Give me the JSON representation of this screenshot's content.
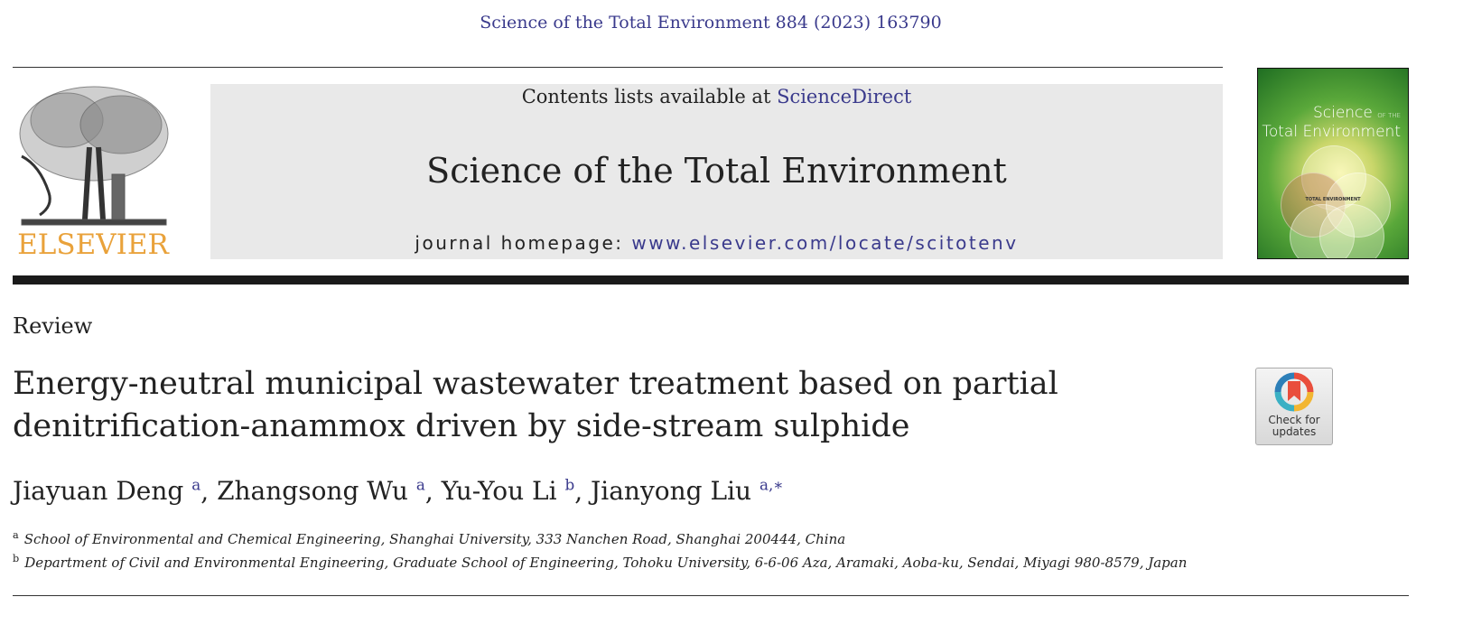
{
  "header": {
    "citation": "Science of the Total Environment 884 (2023) 163790"
  },
  "publisher_logo": {
    "text": "ELSEVIER",
    "color": "#e9a23b"
  },
  "masthead": {
    "contents_prefix": "Contents lists available at ",
    "contents_link": "ScienceDirect",
    "journal_title": "Science of the Total Environment",
    "homepage_prefix": "journal homepage: ",
    "homepage_link": "www.elsevier.com/locate/scitotenv"
  },
  "cover": {
    "title_line1": "Science",
    "title_small": "OF THE",
    "title_line2": "Total Environment",
    "center": "TOTAL ENVIRONMENT"
  },
  "article": {
    "type": "Review",
    "title_line1": "Energy-neutral municipal wastewater treatment based on partial",
    "title_line2": "denitrification-anammox driven by side-stream sulphide",
    "authors": [
      {
        "name": "Jiayuan Deng",
        "sup": "a"
      },
      {
        "name": "Zhangsong Wu",
        "sup": "a"
      },
      {
        "name": "Yu-You Li",
        "sup": "b"
      },
      {
        "name": "Jianyong Liu",
        "sup": "a,∗"
      }
    ],
    "affiliations": [
      {
        "sup": "a",
        "text": "School of Environmental and Chemical Engineering, Shanghai University, 333 Nanchen Road, Shanghai 200444, China"
      },
      {
        "sup": "b",
        "text": "Department of Civil and Environmental Engineering, Graduate School of Engineering, Tohoku University, 6-6-06 Aza, Aramaki, Aoba-ku, Sendai, Miyagi 980-8579, Japan"
      }
    ]
  },
  "check_updates": {
    "line1": "Check for",
    "line2": "updates"
  },
  "colors": {
    "link": "#3a3a8c",
    "elsevier_orange": "#e9a23b",
    "masthead_bg": "#e9e9e9"
  }
}
